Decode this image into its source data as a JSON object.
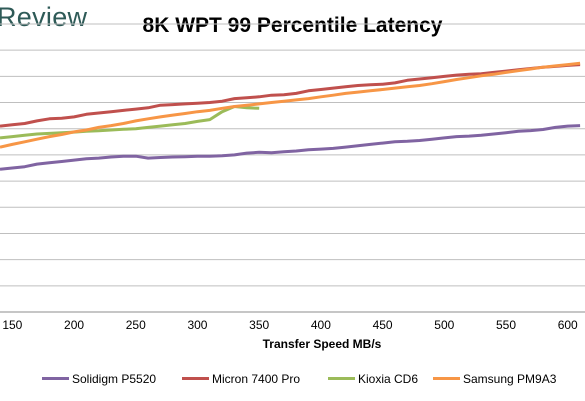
{
  "brand": {
    "name": "Review"
  },
  "chart_data": {
    "type": "line",
    "title": "8K WPT 99 Percentile Latency",
    "xlabel": "Transfer Speed MB/s",
    "ylabel": "",
    "x_ticks": [
      150,
      200,
      250,
      300,
      350,
      400,
      450,
      500,
      550,
      600
    ],
    "xlim": [
      140,
      614
    ],
    "ylim": [
      0,
      11
    ],
    "y_gridlines": [
      1,
      2,
      3,
      4,
      5,
      6,
      7,
      8,
      9,
      10,
      11
    ],
    "grid": true,
    "legend_position": "bottom",
    "series": [
      {
        "name": "Solidigm P5520",
        "color": "#8064a2",
        "x": [
          140,
          150,
          160,
          170,
          180,
          190,
          200,
          210,
          220,
          230,
          240,
          250,
          260,
          270,
          280,
          290,
          300,
          310,
          320,
          330,
          340,
          350,
          360,
          370,
          380,
          390,
          400,
          410,
          420,
          430,
          440,
          450,
          460,
          470,
          480,
          490,
          500,
          510,
          520,
          530,
          540,
          550,
          560,
          570,
          580,
          590,
          600,
          610
        ],
        "y": [
          5.45,
          5.5,
          5.55,
          5.65,
          5.7,
          5.75,
          5.8,
          5.85,
          5.88,
          5.92,
          5.95,
          5.95,
          5.88,
          5.9,
          5.92,
          5.93,
          5.95,
          5.95,
          5.97,
          6.0,
          6.07,
          6.1,
          6.08,
          6.12,
          6.15,
          6.2,
          6.22,
          6.25,
          6.3,
          6.35,
          6.4,
          6.45,
          6.5,
          6.52,
          6.55,
          6.6,
          6.65,
          6.7,
          6.72,
          6.75,
          6.8,
          6.85,
          6.9,
          6.93,
          6.97,
          7.05,
          7.1,
          7.12
        ]
      },
      {
        "name": "Micron 7400 Pro",
        "color": "#c0504d",
        "x": [
          140,
          150,
          160,
          170,
          180,
          190,
          200,
          210,
          220,
          230,
          240,
          250,
          260,
          270,
          280,
          290,
          300,
          310,
          320,
          330,
          340,
          350,
          360,
          370,
          380,
          390,
          400,
          410,
          420,
          430,
          440,
          450,
          460,
          470,
          480,
          490,
          500,
          510,
          520,
          530,
          540,
          550,
          560,
          570,
          580,
          590,
          600,
          610
        ],
        "y": [
          7.1,
          7.15,
          7.2,
          7.3,
          7.38,
          7.4,
          7.45,
          7.55,
          7.6,
          7.65,
          7.7,
          7.75,
          7.8,
          7.9,
          7.92,
          7.95,
          7.97,
          8.0,
          8.05,
          8.15,
          8.18,
          8.22,
          8.28,
          8.3,
          8.35,
          8.45,
          8.5,
          8.55,
          8.6,
          8.65,
          8.68,
          8.7,
          8.75,
          8.85,
          8.9,
          8.95,
          9.0,
          9.05,
          9.08,
          9.1,
          9.15,
          9.2,
          9.25,
          9.3,
          9.35,
          9.38,
          9.42,
          9.45
        ]
      },
      {
        "name": "Kioxia CD6",
        "color": "#9bbb59",
        "x": [
          140,
          150,
          160,
          170,
          180,
          190,
          200,
          210,
          220,
          230,
          240,
          250,
          260,
          270,
          280,
          290,
          300,
          310,
          320,
          330,
          340,
          350
        ],
        "y": [
          6.65,
          6.7,
          6.75,
          6.8,
          6.82,
          6.85,
          6.87,
          6.9,
          6.92,
          6.95,
          6.98,
          7.0,
          7.05,
          7.1,
          7.15,
          7.2,
          7.28,
          7.35,
          7.65,
          7.85,
          7.8,
          7.78
        ]
      },
      {
        "name": "Samsung PM9A3",
        "color": "#f79646",
        "x": [
          140,
          150,
          160,
          170,
          180,
          190,
          200,
          210,
          220,
          230,
          240,
          250,
          260,
          270,
          280,
          290,
          300,
          310,
          320,
          330,
          340,
          350,
          360,
          370,
          380,
          390,
          400,
          410,
          420,
          430,
          440,
          450,
          460,
          470,
          480,
          490,
          500,
          510,
          520,
          530,
          540,
          550,
          560,
          570,
          580,
          590,
          600,
          610
        ],
        "y": [
          6.3,
          6.4,
          6.5,
          6.6,
          6.7,
          6.78,
          6.88,
          6.95,
          7.05,
          7.12,
          7.2,
          7.3,
          7.38,
          7.45,
          7.52,
          7.58,
          7.65,
          7.7,
          7.78,
          7.85,
          7.9,
          7.95,
          8.0,
          8.05,
          8.1,
          8.15,
          8.22,
          8.28,
          8.35,
          8.4,
          8.45,
          8.5,
          8.55,
          8.6,
          8.65,
          8.72,
          8.8,
          8.88,
          8.95,
          9.02,
          9.08,
          9.15,
          9.22,
          9.28,
          9.35,
          9.4,
          9.45,
          9.5
        ]
      }
    ]
  }
}
